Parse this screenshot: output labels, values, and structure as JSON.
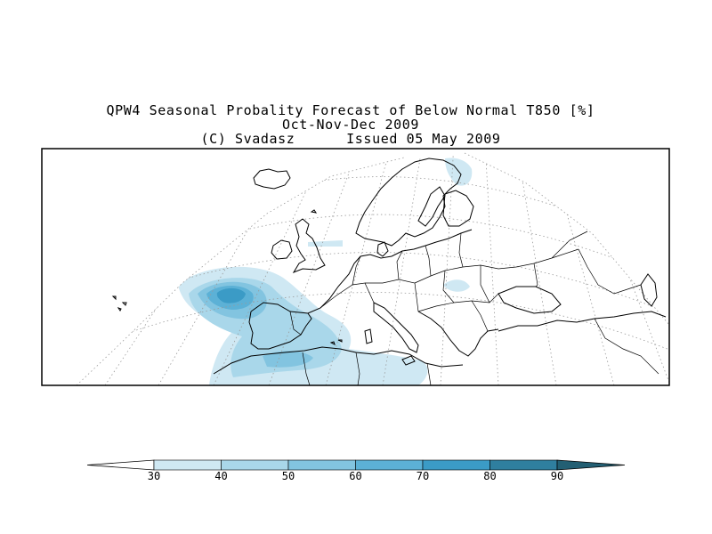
{
  "title": {
    "line1": "QPW4 Seasonal Probality Forecast of Below Normal T850 [%]",
    "line2": "Oct-Nov-Dec 2009",
    "line3": "(C) Svadasz      Issued 05 May 2009"
  },
  "colorbar": {
    "levels": [
      {
        "label": "30",
        "color": "#cfe8f3"
      },
      {
        "label": "40",
        "color": "#a9d7ea"
      },
      {
        "label": "50",
        "color": "#82c4e0"
      },
      {
        "label": "60",
        "color": "#5cb1d6"
      },
      {
        "label": "70",
        "color": "#3b9bc6"
      },
      {
        "label": "80",
        "color": "#2f7f9f"
      },
      {
        "label": "90",
        "color": "#235f73"
      }
    ],
    "low_color": "#ffffff",
    "high_color": "#235f73"
  },
  "map": {
    "region": "Europe",
    "projection": "conic",
    "frame_color": "#000000",
    "coastline_color": "#000000",
    "graticule_color": "#9a9a9a"
  }
}
